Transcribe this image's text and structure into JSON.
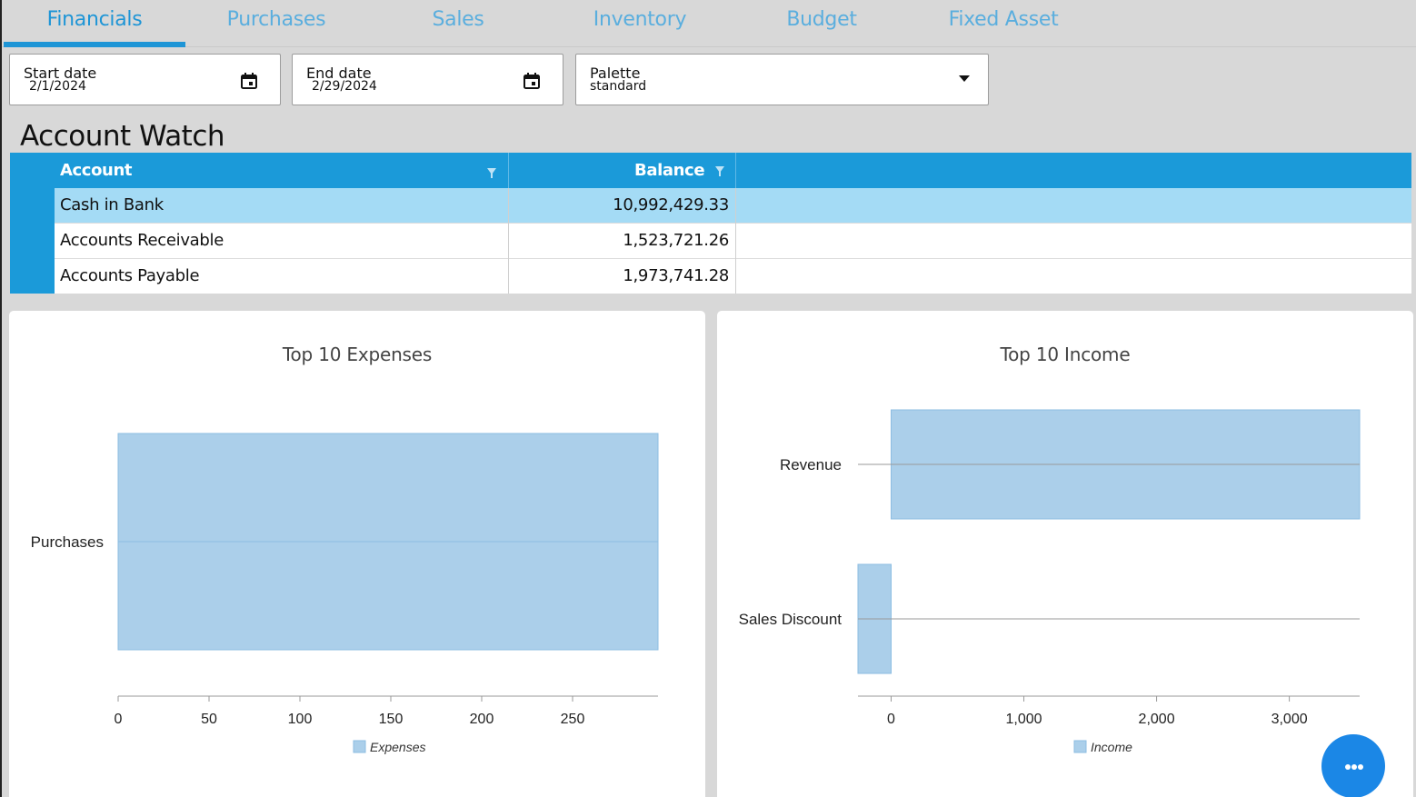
{
  "tabs": [
    {
      "label": "Financials",
      "active": true
    },
    {
      "label": "Purchases"
    },
    {
      "label": "Sales"
    },
    {
      "label": "Inventory"
    },
    {
      "label": "Budget"
    },
    {
      "label": "Fixed Asset"
    }
  ],
  "filters": {
    "start": {
      "label": "Start date",
      "value": "2/1/2024",
      "icon": "calendar-icon"
    },
    "end": {
      "label": "End date",
      "value": "2/29/2024",
      "icon": "calendar-icon"
    },
    "palette": {
      "label": "Palette",
      "value": "standard",
      "icon": "chevron-down-icon"
    }
  },
  "account_watch": {
    "title": "Account Watch",
    "columns": [
      "Account",
      "Balance"
    ],
    "rows": [
      {
        "account": "Cash in Bank",
        "balance": "10,992,429.33"
      },
      {
        "account": "Accounts Receivable",
        "balance": "1,523,721.26"
      },
      {
        "account": "Accounts Payable",
        "balance": "1,973,741.28"
      }
    ]
  },
  "colors": {
    "accent": "#1b9ad9",
    "bar_fill": "#abcfea",
    "bar_stroke": "#8dbde2",
    "selected_row": "#a4dbf5"
  },
  "chart_data": [
    {
      "type": "bar",
      "orientation": "horizontal",
      "title": "Top 10 Expenses",
      "categories": [
        "Purchases"
      ],
      "series": [
        {
          "name": "Expenses",
          "values": [
            297
          ]
        }
      ],
      "xlim": [
        0,
        297
      ],
      "xticks": [
        0,
        50,
        100,
        150,
        200,
        250
      ],
      "xtick_labels": [
        "0",
        "50",
        "100",
        "150",
        "200",
        "250"
      ],
      "legend": "bottom",
      "grid": false
    },
    {
      "type": "bar",
      "orientation": "horizontal",
      "title": "Top 10 Income",
      "categories": [
        "Revenue",
        "Sales Discount"
      ],
      "series": [
        {
          "name": "Income",
          "values": [
            3530,
            -250
          ]
        }
      ],
      "xlim": [
        -250,
        3530
      ],
      "xticks": [
        0,
        1000,
        2000,
        3000
      ],
      "xtick_labels": [
        "0",
        "1,000",
        "2,000",
        "3,000"
      ],
      "legend": "bottom",
      "grid": false
    }
  ],
  "fab": {
    "icon": "more-icon"
  }
}
